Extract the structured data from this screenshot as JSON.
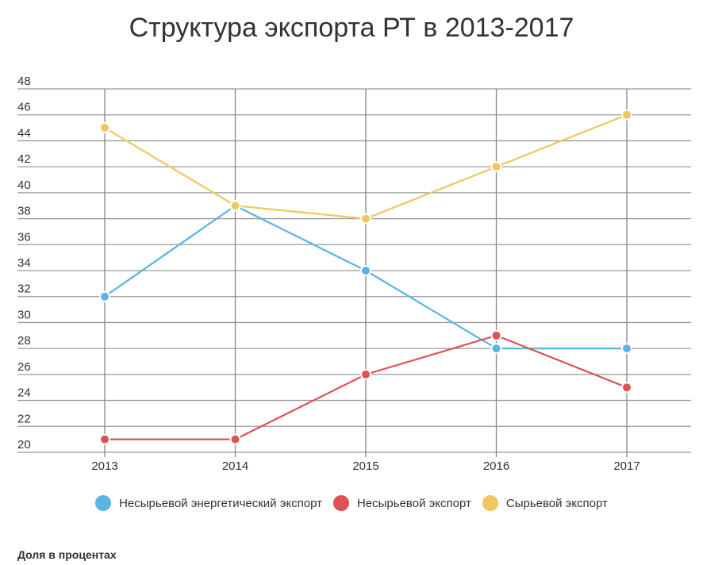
{
  "chart_data": {
    "type": "line",
    "title": "Структура экспорта РТ в 2013-2017",
    "categories": [
      "2013",
      "2014",
      "2015",
      "2016",
      "2017"
    ],
    "ylim": [
      20,
      48
    ],
    "yticks": [
      "20",
      "22",
      "24",
      "26",
      "28",
      "30",
      "32",
      "34",
      "36",
      "38",
      "40",
      "42",
      "44",
      "46",
      "48"
    ],
    "grid": true,
    "legend_placement": "bottom",
    "series": [
      {
        "name": "Несырьевой энергетический экспорт",
        "color": "#5ab4e5",
        "values": [
          32,
          39,
          34,
          28,
          28
        ]
      },
      {
        "name": "Несырьевой экспорт",
        "color": "#e05153",
        "values": [
          21,
          21,
          26,
          29,
          25
        ]
      },
      {
        "name": "Сырьевой экспорт",
        "color": "#f0c75e",
        "values": [
          45,
          39,
          38,
          42,
          46
        ]
      }
    ],
    "footnote": "Доля в процентах"
  }
}
